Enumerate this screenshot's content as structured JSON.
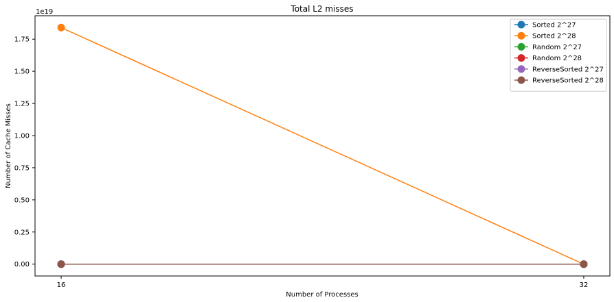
{
  "chart_data": {
    "type": "line",
    "title": "Total L2 misses",
    "xlabel": "Number of Processes",
    "ylabel": "Number of Cache Misses",
    "y_offset_label": "1e19",
    "y_scale": 1e+19,
    "x": [
      16,
      32
    ],
    "x_tick_labels": [
      "16",
      "32"
    ],
    "ylim": [
      -0.092,
      1.932
    ],
    "y_ticks": [
      0.0,
      0.25,
      0.5,
      0.75,
      1.0,
      1.25,
      1.5,
      1.75
    ],
    "y_tick_labels": [
      "0.00",
      "0.25",
      "0.50",
      "0.75",
      "1.00",
      "1.25",
      "1.50",
      "1.75"
    ],
    "grid": false,
    "legend_position": "upper right",
    "series": [
      {
        "name": "Sorted 2^27",
        "color": "#1f77b4",
        "values": [
          0,
          0
        ]
      },
      {
        "name": "Sorted 2^28",
        "color": "#ff7f0e",
        "values": [
          1.84,
          0
        ]
      },
      {
        "name": "Random 2^27",
        "color": "#2ca02c",
        "values": [
          0,
          0
        ]
      },
      {
        "name": "Random 2^28",
        "color": "#d62728",
        "values": [
          0,
          0
        ]
      },
      {
        "name": "ReverseSorted 2^27",
        "color": "#9467bd",
        "values": [
          0,
          0
        ]
      },
      {
        "name": "ReverseSorted 2^28",
        "color": "#8c564b",
        "values": [
          0,
          0
        ]
      }
    ]
  }
}
